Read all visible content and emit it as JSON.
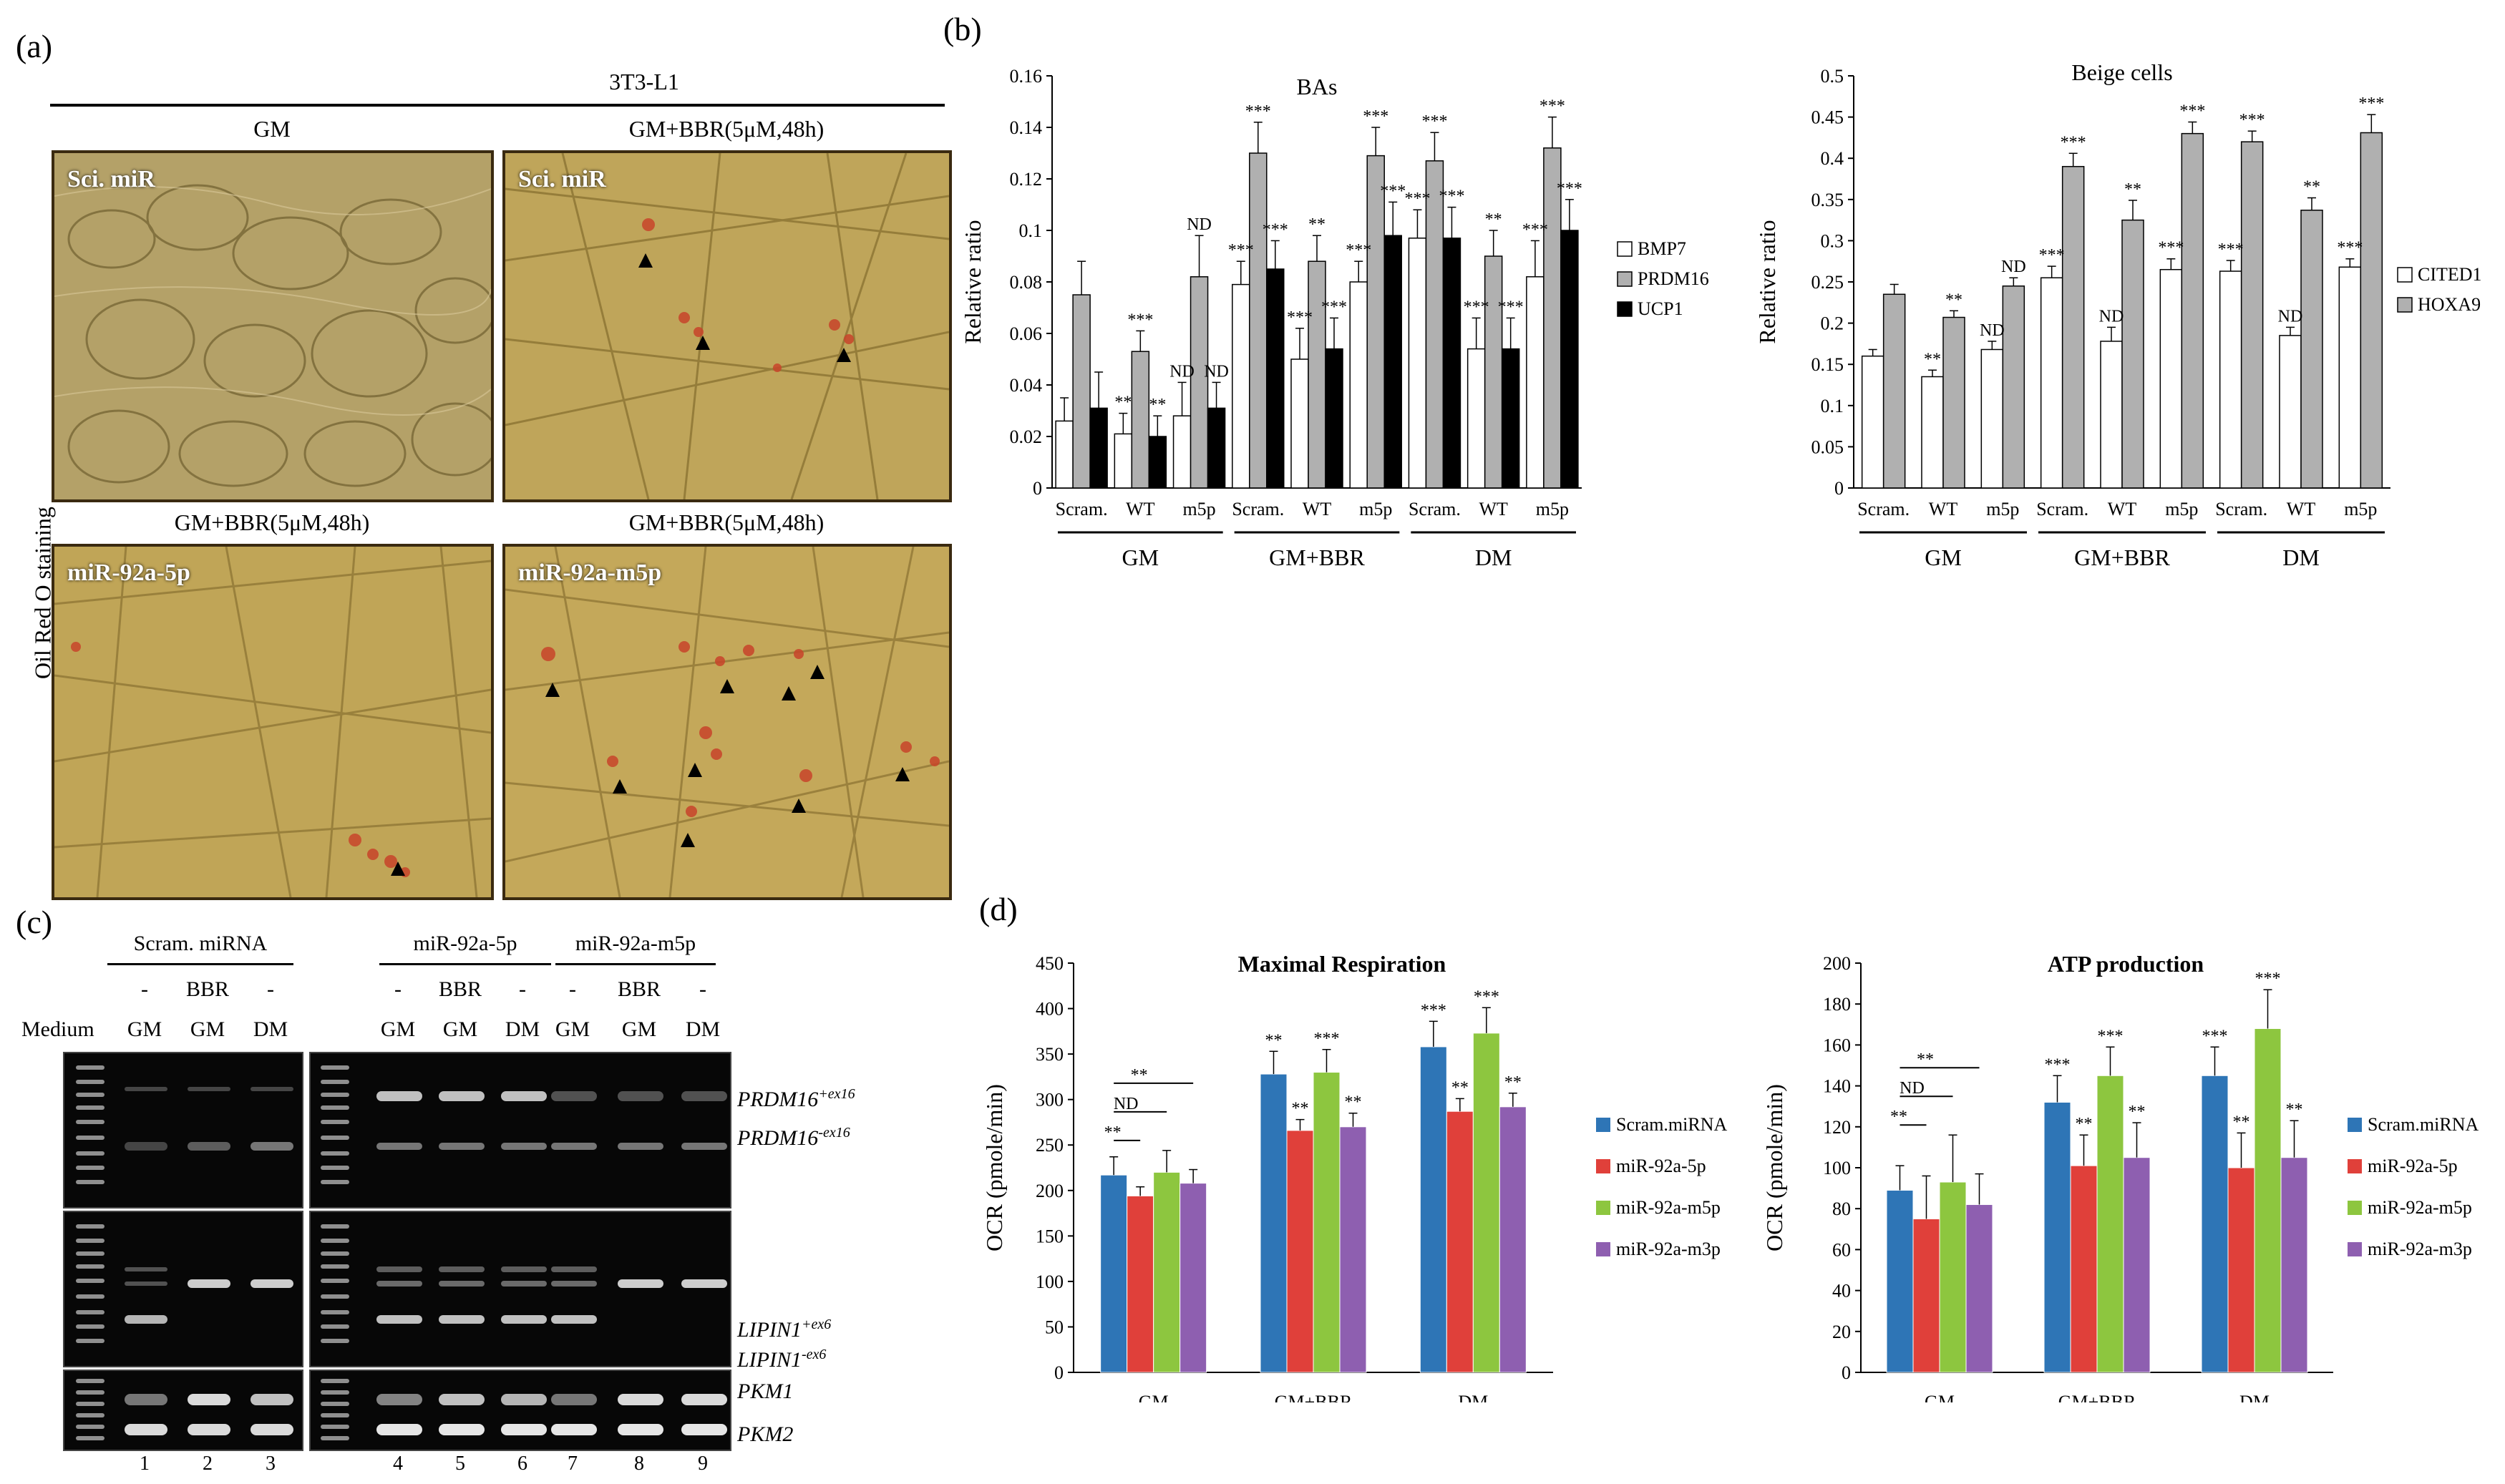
{
  "panels": {
    "a": "(a)",
    "b": "(b)",
    "c": "(c)",
    "d": "(d)"
  },
  "panel_a": {
    "cell_line": "3T3-L1",
    "y_label": "Oil Red O staining",
    "images": [
      {
        "title": "GM",
        "label": "Sci. miR"
      },
      {
        "title": "GM+BBR(5μM,48h)",
        "label": "Sci. miR"
      },
      {
        "title": "GM+BBR(5μM,48h)",
        "label": "miR-92a-5p"
      },
      {
        "title": "GM+BBR(5μM,48h)",
        "label": "miR-92a-m5p"
      }
    ]
  },
  "panel_c": {
    "groups": [
      "Scram. miRNA",
      "miR-92a-5p",
      "miR-92a-m5p"
    ],
    "treatment_row": [
      "-",
      "BBR",
      "-",
      "-",
      "BBR",
      "-",
      "-",
      "BBR",
      "-"
    ],
    "medium_label": "Medium",
    "medium_row": [
      "GM",
      "GM",
      "DM",
      "GM",
      "GM",
      "DM",
      "GM",
      "GM",
      "DM"
    ],
    "lanes": [
      "1",
      "2",
      "3",
      "4",
      "5",
      "6",
      "7",
      "8",
      "9"
    ],
    "bands": {
      "prdm16_plus": "PRDM16",
      "prdm16_plus_sup": "+ex16",
      "prdm16_minus": "PRDM16",
      "prdm16_minus_sup": "-ex16",
      "lipin1_plus": "LIPIN1",
      "lipin1_plus_sup": "+ex6",
      "lipin1_minus": "LIPIN1",
      "lipin1_minus_sup": "-ex6",
      "pkm1": "PKM1",
      "pkm2": "PKM2"
    }
  },
  "chart_data": [
    {
      "id": "bas",
      "type": "bar",
      "title": "BAs",
      "ylabel": "Relative ratio",
      "ylim": [
        0,
        0.16
      ],
      "yticks": [
        "0",
        "0.02",
        "0.04",
        "0.06",
        "0.08",
        "0.1",
        "0.12",
        "0.14",
        "0.16"
      ],
      "categories": [
        "Scram.",
        "WT",
        "m5p",
        "Scram.",
        "WT",
        "m5p",
        "Scram.",
        "WT",
        "m5p"
      ],
      "groups": [
        "GM",
        "GM+BBR",
        "DM"
      ],
      "series": [
        {
          "name": "BMP7",
          "color": "#ffffff",
          "values": [
            0.026,
            0.021,
            0.028,
            0.079,
            0.05,
            0.08,
            0.097,
            0.054,
            0.082
          ],
          "errors": [
            0.009,
            0.008,
            0.013,
            0.009,
            0.012,
            0.008,
            0.011,
            0.012,
            0.014
          ]
        },
        {
          "name": "PRDM16",
          "color": "#b0b0b0",
          "values": [
            0.075,
            0.053,
            0.082,
            0.13,
            0.088,
            0.129,
            0.127,
            0.09,
            0.132
          ],
          "errors": [
            0.013,
            0.008,
            0.016,
            0.012,
            0.01,
            0.011,
            0.011,
            0.01,
            0.012
          ]
        },
        {
          "name": "UCP1",
          "color": "#000000",
          "values": [
            0.031,
            0.02,
            0.031,
            0.085,
            0.054,
            0.098,
            0.097,
            0.054,
            0.1
          ],
          "errors": [
            0.014,
            0.008,
            0.01,
            0.011,
            0.012,
            0.013,
            0.012,
            0.012,
            0.012
          ]
        }
      ],
      "annotations": [
        {
          "cat": 1,
          "series": 0,
          "text": "**"
        },
        {
          "cat": 1,
          "series": 1,
          "text": "***"
        },
        {
          "cat": 1,
          "series": 2,
          "text": "**"
        },
        {
          "cat": 2,
          "series": 0,
          "text": "ND"
        },
        {
          "cat": 2,
          "series": 1,
          "text": "ND"
        },
        {
          "cat": 2,
          "series": 2,
          "text": "ND"
        },
        {
          "cat": 3,
          "series": 0,
          "text": "***"
        },
        {
          "cat": 3,
          "series": 1,
          "text": "***"
        },
        {
          "cat": 3,
          "series": 2,
          "text": "***"
        },
        {
          "cat": 4,
          "series": 0,
          "text": "***"
        },
        {
          "cat": 4,
          "series": 1,
          "text": "**"
        },
        {
          "cat": 4,
          "series": 2,
          "text": "***"
        },
        {
          "cat": 5,
          "series": 0,
          "text": "***"
        },
        {
          "cat": 5,
          "series": 1,
          "text": "***"
        },
        {
          "cat": 5,
          "series": 2,
          "text": "***"
        },
        {
          "cat": 6,
          "series": 0,
          "text": "***"
        },
        {
          "cat": 6,
          "series": 1,
          "text": "***"
        },
        {
          "cat": 6,
          "series": 2,
          "text": "***"
        },
        {
          "cat": 7,
          "series": 0,
          "text": "***"
        },
        {
          "cat": 7,
          "series": 1,
          "text": "**"
        },
        {
          "cat": 7,
          "series": 2,
          "text": "***"
        },
        {
          "cat": 8,
          "series": 0,
          "text": "***"
        },
        {
          "cat": 8,
          "series": 1,
          "text": "***"
        },
        {
          "cat": 8,
          "series": 2,
          "text": "***"
        }
      ]
    },
    {
      "id": "beige",
      "type": "bar",
      "title": "Beige cells",
      "ylabel": "Relative ratio",
      "ylim": [
        0,
        0.5
      ],
      "yticks": [
        "0",
        "0.05",
        "0.1",
        "0.15",
        "0.2",
        "0.25",
        "0.3",
        "0.35",
        "0.4",
        "0.45",
        "0.5"
      ],
      "categories": [
        "Scram.",
        "WT",
        "m5p",
        "Scram.",
        "WT",
        "m5p",
        "Scram.",
        "WT",
        "m5p"
      ],
      "groups": [
        "GM",
        "GM+BBR",
        "DM"
      ],
      "series": [
        {
          "name": "CITED1",
          "color": "#ffffff",
          "values": [
            0.16,
            0.135,
            0.168,
            0.255,
            0.178,
            0.265,
            0.263,
            0.185,
            0.268
          ],
          "errors": [
            0.008,
            0.008,
            0.01,
            0.014,
            0.017,
            0.013,
            0.013,
            0.01,
            0.01
          ]
        },
        {
          "name": "HOXA9",
          "color": "#b0b0b0",
          "values": [
            0.235,
            0.207,
            0.245,
            0.39,
            0.325,
            0.43,
            0.42,
            0.337,
            0.431
          ],
          "errors": [
            0.012,
            0.008,
            0.01,
            0.016,
            0.024,
            0.014,
            0.013,
            0.015,
            0.022
          ]
        }
      ],
      "annotations": [
        {
          "cat": 1,
          "series": 0,
          "text": "**"
        },
        {
          "cat": 1,
          "series": 1,
          "text": "**"
        },
        {
          "cat": 2,
          "series": 0,
          "text": "ND"
        },
        {
          "cat": 2,
          "series": 1,
          "text": "ND"
        },
        {
          "cat": 3,
          "series": 0,
          "text": "***"
        },
        {
          "cat": 3,
          "series": 1,
          "text": "***"
        },
        {
          "cat": 4,
          "series": 0,
          "text": "ND"
        },
        {
          "cat": 4,
          "series": 1,
          "text": "**"
        },
        {
          "cat": 5,
          "series": 0,
          "text": "***"
        },
        {
          "cat": 5,
          "series": 1,
          "text": "***"
        },
        {
          "cat": 6,
          "series": 0,
          "text": "***"
        },
        {
          "cat": 6,
          "series": 1,
          "text": "***"
        },
        {
          "cat": 7,
          "series": 0,
          "text": "ND"
        },
        {
          "cat": 7,
          "series": 1,
          "text": "**"
        },
        {
          "cat": 8,
          "series": 0,
          "text": "***"
        },
        {
          "cat": 8,
          "series": 1,
          "text": "***"
        }
      ]
    },
    {
      "id": "maxresp",
      "type": "bar",
      "title": "Maximal Respiration",
      "ylabel": "OCR (pmole/min)",
      "ylim": [
        0,
        450
      ],
      "yticks": [
        "0",
        "50",
        "100",
        "150",
        "200",
        "250",
        "300",
        "350",
        "400",
        "450"
      ],
      "categories": [
        "GM",
        "GM+BBR",
        "DM"
      ],
      "series": [
        {
          "name": "Scram.miRNA",
          "color": "#2e75b6",
          "values": [
            217,
            328,
            358
          ],
          "errors": [
            20,
            25,
            28
          ]
        },
        {
          "name": "miR-92a-5p",
          "color": "#e0403a",
          "values": [
            194,
            266,
            287
          ],
          "errors": [
            10,
            12,
            14
          ]
        },
        {
          "name": "miR-92a-m5p",
          "color": "#8dc63f",
          "values": [
            220,
            330,
            373
          ],
          "errors": [
            24,
            25,
            28
          ]
        },
        {
          "name": "miR-92a-m3p",
          "color": "#8e5fb0",
          "values": [
            208,
            270,
            292
          ],
          "errors": [
            15,
            15,
            15
          ]
        }
      ],
      "annotations": [
        {
          "cat": 1,
          "series": 0,
          "text": "**"
        },
        {
          "cat": 1,
          "series": 1,
          "text": "**"
        },
        {
          "cat": 1,
          "series": 2,
          "text": "***"
        },
        {
          "cat": 1,
          "series": 3,
          "text": "**"
        },
        {
          "cat": 2,
          "series": 0,
          "text": "***"
        },
        {
          "cat": 2,
          "series": 1,
          "text": "**"
        },
        {
          "cat": 2,
          "series": 2,
          "text": "***"
        },
        {
          "cat": 2,
          "series": 3,
          "text": "**"
        }
      ],
      "brackets": [
        {
          "to_series": 1,
          "text": "**"
        },
        {
          "to_series": 2,
          "text": "ND"
        },
        {
          "to_series": 3,
          "text": "**"
        }
      ]
    },
    {
      "id": "atp",
      "type": "bar",
      "title": "ATP production",
      "ylabel": "OCR (pmole/min)",
      "ylim": [
        0,
        200
      ],
      "yticks": [
        "0",
        "20",
        "40",
        "60",
        "80",
        "100",
        "120",
        "140",
        "160",
        "180",
        "200"
      ],
      "categories": [
        "GM",
        "GM+BBR",
        "DM"
      ],
      "series": [
        {
          "name": "Scram.miRNA",
          "color": "#2e75b6",
          "values": [
            89,
            132,
            145
          ],
          "errors": [
            12,
            13,
            14
          ]
        },
        {
          "name": "miR-92a-5p",
          "color": "#e0403a",
          "values": [
            75,
            101,
            100
          ],
          "errors": [
            21,
            15,
            17
          ]
        },
        {
          "name": "miR-92a-m5p",
          "color": "#8dc63f",
          "values": [
            93,
            145,
            168
          ],
          "errors": [
            23,
            14,
            19
          ]
        },
        {
          "name": "miR-92a-m3p",
          "color": "#8e5fb0",
          "values": [
            82,
            105,
            105
          ],
          "errors": [
            15,
            17,
            18
          ]
        }
      ],
      "annotations": [
        {
          "cat": 1,
          "series": 0,
          "text": "***"
        },
        {
          "cat": 1,
          "series": 1,
          "text": "**"
        },
        {
          "cat": 1,
          "series": 2,
          "text": "***"
        },
        {
          "cat": 1,
          "series": 3,
          "text": "**"
        },
        {
          "cat": 2,
          "series": 0,
          "text": "***"
        },
        {
          "cat": 2,
          "series": 1,
          "text": "**"
        },
        {
          "cat": 2,
          "series": 2,
          "text": "***"
        },
        {
          "cat": 2,
          "series": 3,
          "text": "**"
        }
      ],
      "brackets": [
        {
          "to_series": 1,
          "text": "**"
        },
        {
          "to_series": 2,
          "text": "ND"
        },
        {
          "to_series": 3,
          "text": "**"
        }
      ]
    }
  ]
}
